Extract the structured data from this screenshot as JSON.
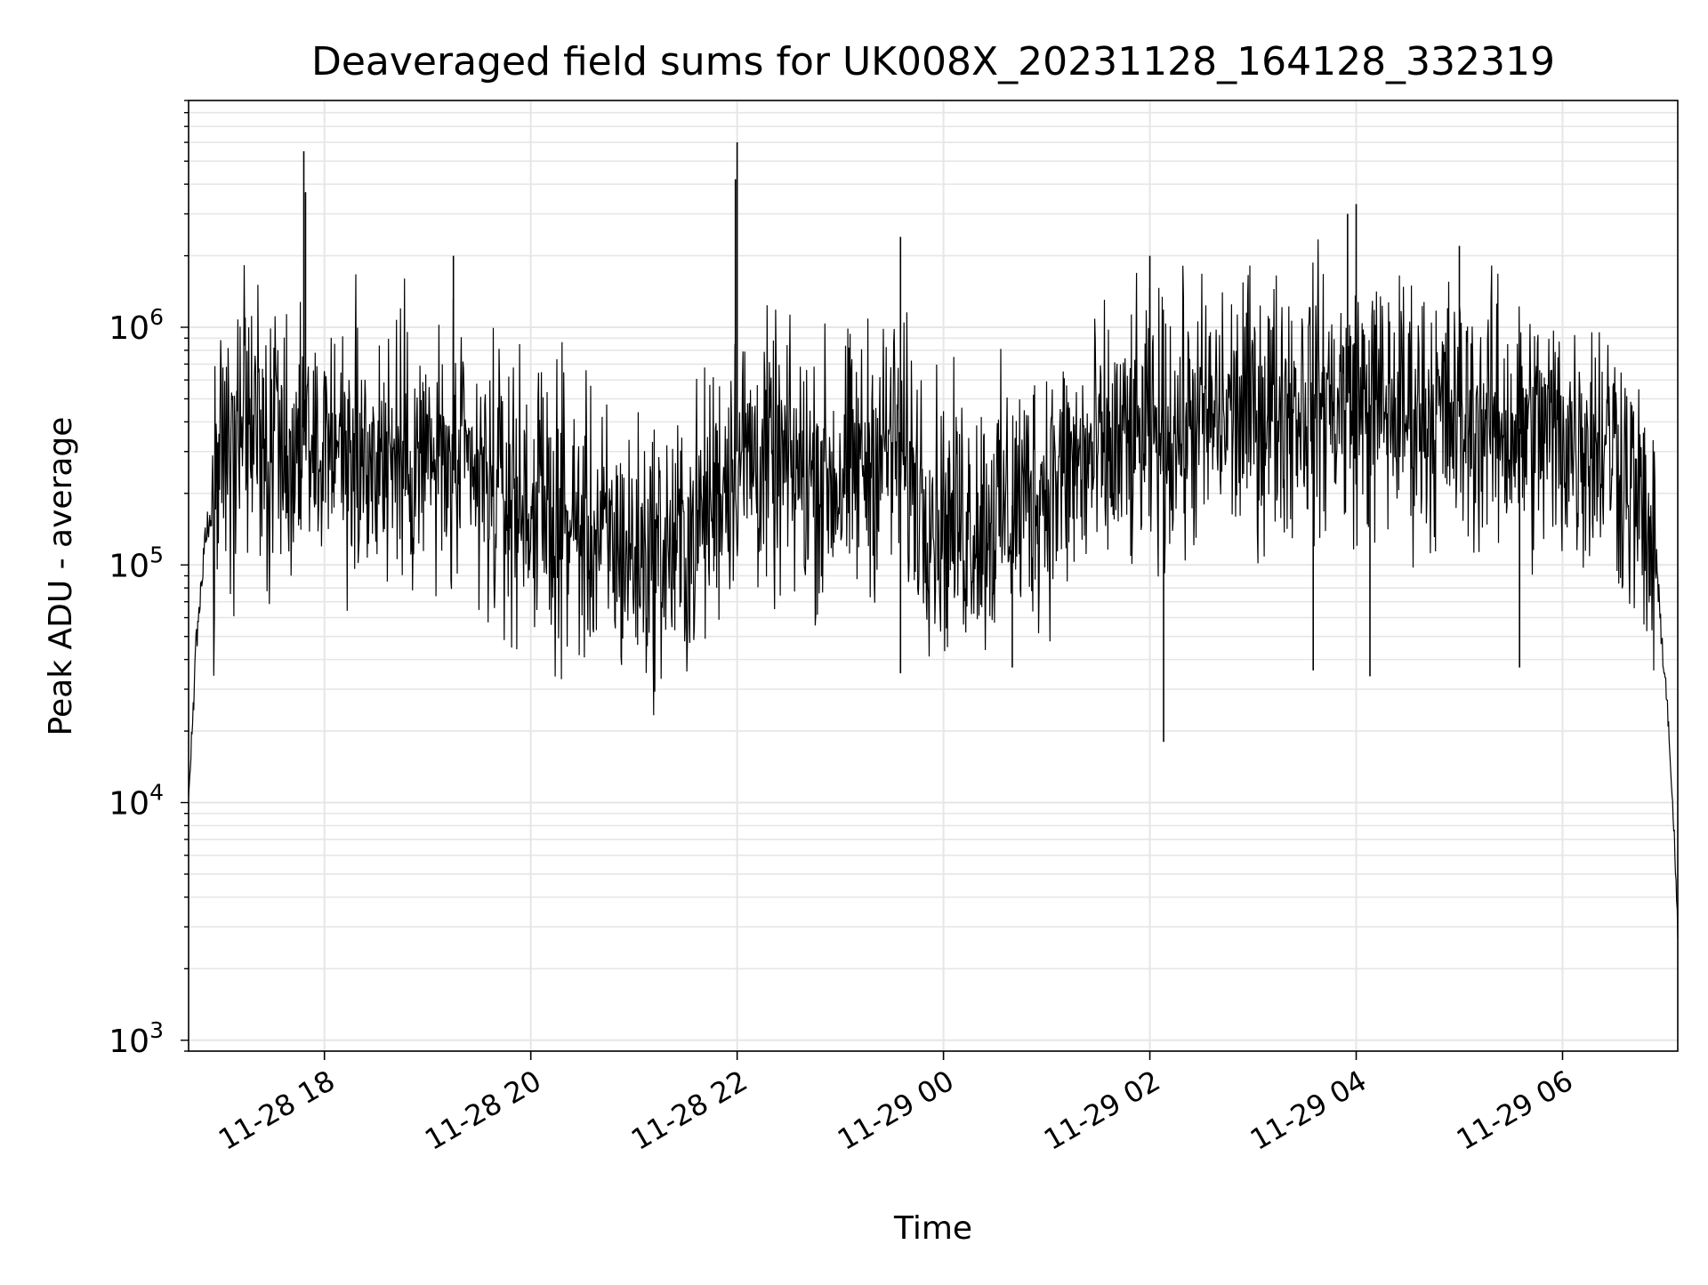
{
  "chart_data": {
    "type": "line",
    "title": "Deaveraged field sums for UK008X_20231128_164128_332319",
    "xlabel": "Time",
    "ylabel": "Peak ADU - average",
    "y_scale": "log",
    "ylim": [
      900,
      9000000
    ],
    "xlim": [
      "2023-11-28T16:41",
      "2023-11-29T07:07"
    ],
    "grid": true,
    "legend": "none",
    "line_color": "#000000",
    "x_ticks": [
      {
        "label": "11-28 18",
        "value": "2023-11-28T18:00"
      },
      {
        "label": "11-28 20",
        "value": "2023-11-28T20:00"
      },
      {
        "label": "11-28 22",
        "value": "2023-11-28T22:00"
      },
      {
        "label": "11-29 00",
        "value": "2023-11-29T00:00"
      },
      {
        "label": "11-29 02",
        "value": "2023-11-29T02:00"
      },
      {
        "label": "11-29 04",
        "value": "2023-11-29T04:00"
      },
      {
        "label": "11-29 06",
        "value": "2023-11-29T06:00"
      }
    ],
    "y_ticks": [
      {
        "base": "10",
        "exp": "3",
        "value": 1000
      },
      {
        "base": "10",
        "exp": "4",
        "value": 10000
      },
      {
        "base": "10",
        "exp": "5",
        "value": 100000
      },
      {
        "base": "10",
        "exp": "6",
        "value": 1000000
      }
    ],
    "envelope": {
      "x": [
        "2023-11-28T16:41",
        "2023-11-28T16:45",
        "2023-11-28T16:50",
        "2023-11-28T17:00",
        "2023-11-28T17:15",
        "2023-11-28T17:45",
        "2023-11-28T18:30",
        "2023-11-28T19:00",
        "2023-11-28T19:15",
        "2023-11-28T19:30",
        "2023-11-28T20:00",
        "2023-11-28T20:30",
        "2023-11-28T21:00",
        "2023-11-28T21:30",
        "2023-11-28T22:00",
        "2023-11-28T22:30",
        "2023-11-28T23:00",
        "2023-11-28T23:30",
        "2023-11-29T00:00",
        "2023-11-29T00:30",
        "2023-11-29T01:00",
        "2023-11-29T01:30",
        "2023-11-29T02:00",
        "2023-11-29T02:30",
        "2023-11-29T03:00",
        "2023-11-29T03:30",
        "2023-11-29T04:00",
        "2023-11-29T04:30",
        "2023-11-29T05:00",
        "2023-11-29T05:30",
        "2023-11-29T06:00",
        "2023-11-29T06:30",
        "2023-11-29T06:45",
        "2023-11-29T06:55",
        "2023-11-29T07:02",
        "2023-11-29T07:07"
      ],
      "median": [
        10000,
        40000,
        120000,
        250000,
        350000,
        320000,
        300000,
        280000,
        250000,
        220000,
        180000,
        140000,
        110000,
        120000,
        300000,
        250000,
        230000,
        330000,
        150000,
        160000,
        220000,
        280000,
        350000,
        400000,
        450000,
        500000,
        480000,
        450000,
        420000,
        380000,
        350000,
        330000,
        170000,
        90000,
        20000,
        3000
      ]
    },
    "spikes": [
      {
        "x": "2023-11-28T17:48",
        "y": 5500000
      },
      {
        "x": "2023-11-28T17:49",
        "y": 3700000
      },
      {
        "x": "2023-11-28T22:00",
        "y": 6000000
      },
      {
        "x": "2023-11-28T21:59",
        "y": 4200000
      },
      {
        "x": "2023-11-28T23:35",
        "y": 2400000
      },
      {
        "x": "2023-11-29T04:00",
        "y": 3300000
      },
      {
        "x": "2023-11-29T03:55",
        "y": 3000000
      },
      {
        "x": "2023-11-29T05:00",
        "y": 2200000
      },
      {
        "x": "2023-11-29T02:00",
        "y": 2000000
      },
      {
        "x": "2023-11-28T19:15",
        "y": 2000000
      }
    ],
    "dips": [
      {
        "x": "2023-11-29T02:08",
        "y": 18000
      },
      {
        "x": "2023-11-28T23:35",
        "y": 35000
      },
      {
        "x": "2023-11-29T03:35",
        "y": 36000
      },
      {
        "x": "2023-11-29T04:08",
        "y": 34000
      },
      {
        "x": "2023-11-29T05:35",
        "y": 37000
      },
      {
        "x": "2023-11-29T00:40",
        "y": 37000
      }
    ]
  }
}
